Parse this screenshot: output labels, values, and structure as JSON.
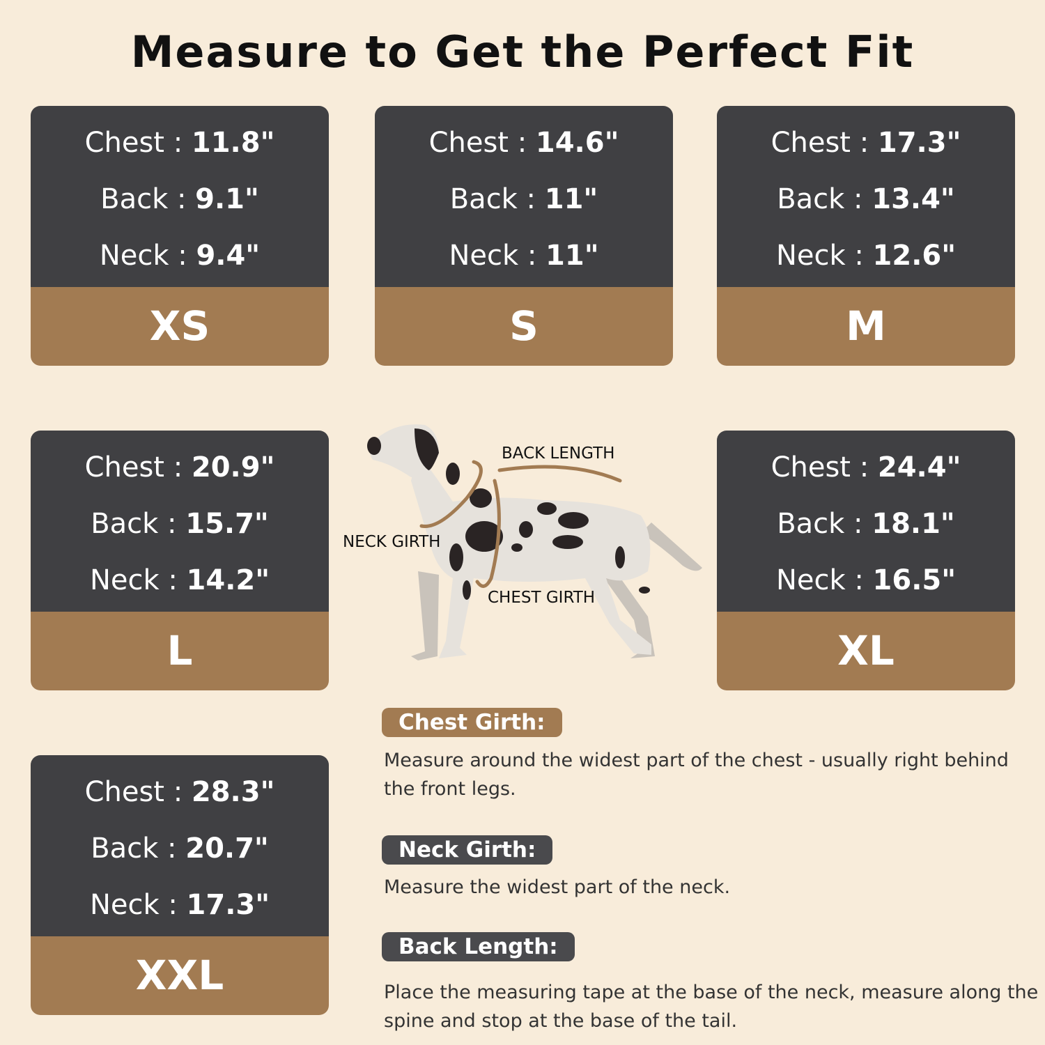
{
  "title": "Measure to Get the Perfect Fit",
  "labels": {
    "chest": "Chest",
    "back": "Back",
    "neck": "Neck",
    "sep": " : "
  },
  "sizes": [
    {
      "size": "XS",
      "chest": "11.8\"",
      "back": "9.1\"",
      "neck": "9.4\""
    },
    {
      "size": "S",
      "chest": "14.6\"",
      "back": "11\"",
      "neck": "11\""
    },
    {
      "size": "M",
      "chest": "17.3\"",
      "back": "13.4\"",
      "neck": "12.6\""
    },
    {
      "size": "L",
      "chest": "20.9\"",
      "back": "15.7\"",
      "neck": "14.2\""
    },
    {
      "size": "XL",
      "chest": "24.4\"",
      "back": "18.1\"",
      "neck": "16.5\""
    },
    {
      "size": "XXL",
      "chest": "28.3\"",
      "back": "20.7\"",
      "neck": "17.3\""
    }
  ],
  "diagram": {
    "back_length": "BACK LENGTH",
    "neck_girth": "NECK GIRTH",
    "chest_girth": "CHEST GIRTH"
  },
  "instructions": [
    {
      "heading": "Chest Girth:",
      "text": "Measure around the widest part of the chest - usually right behind the front legs.",
      "color": "#a27b52"
    },
    {
      "heading": "Neck Girth:",
      "text": "Measure the widest part of the neck.",
      "color": "#4a4a4d"
    },
    {
      "heading": "Back Length:",
      "text": "Place the measuring tape at the base of the neck, measure along the spine and stop at the base of the tail.",
      "color": "#4a4a4d"
    }
  ],
  "colors": {
    "background": "#f8ecda",
    "card_dark": "#404043",
    "card_brown": "#a27b52"
  }
}
